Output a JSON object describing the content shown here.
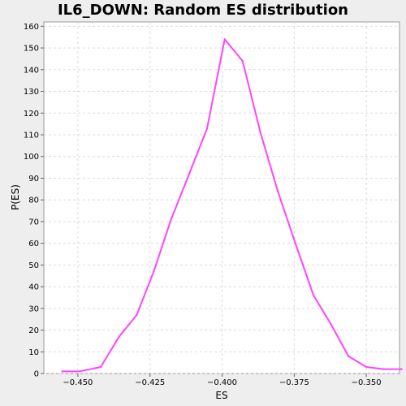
{
  "chart_data": {
    "type": "line",
    "title": "IL6_DOWN: Random ES distribution",
    "xlabel": "ES",
    "ylabel": "P(ES)",
    "xlim": [
      -0.4618,
      -0.3385
    ],
    "ylim": [
      0,
      162
    ],
    "x_ticks": [
      -0.45,
      -0.425,
      -0.4,
      -0.375,
      -0.35
    ],
    "x_tick_labels": [
      "−0.450",
      "−0.425",
      "−0.400",
      "−0.375",
      "−0.350"
    ],
    "y_ticks": [
      0,
      10,
      20,
      30,
      40,
      50,
      60,
      70,
      80,
      90,
      100,
      110,
      120,
      130,
      140,
      150,
      160
    ],
    "y_tick_labels": [
      "0",
      "10",
      "20",
      "30",
      "40",
      "50",
      "60",
      "70",
      "80",
      "90",
      "100",
      "110",
      "120",
      "130",
      "140",
      "150",
      "160"
    ],
    "grid": true,
    "series": [
      {
        "color": "#ff44ff",
        "x": [
          -0.4554,
          -0.4494,
          -0.4421,
          -0.4357,
          -0.4296,
          -0.4237,
          -0.4177,
          -0.4114,
          -0.4052,
          -0.3991,
          -0.3929,
          -0.3867,
          -0.3807,
          -0.3746,
          -0.3683,
          -0.3624,
          -0.3562,
          -0.35,
          -0.344,
          -0.3378
        ],
        "values": [
          1,
          1,
          3,
          17,
          27,
          47,
          71,
          92,
          113,
          154,
          144,
          111,
          84,
          60,
          36,
          23,
          8,
          3,
          2,
          2
        ]
      }
    ]
  }
}
